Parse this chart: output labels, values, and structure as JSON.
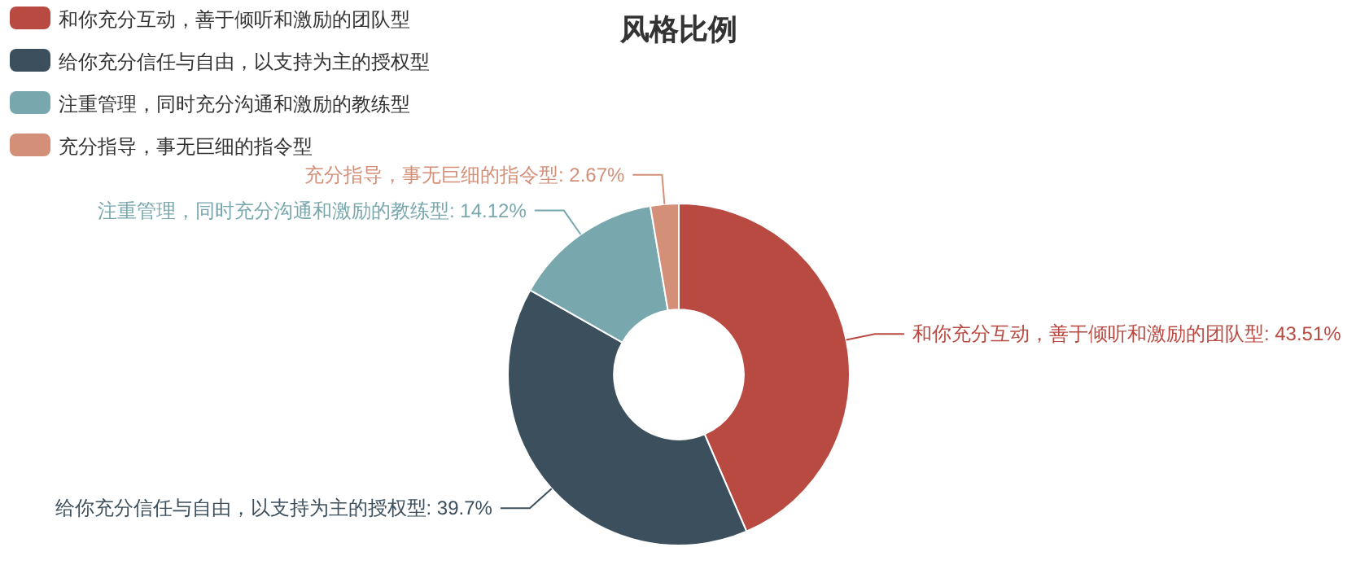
{
  "chart_data": {
    "type": "donut",
    "title": "风格比例",
    "categories": [
      "和你充分互动，善于倾听和激励的团队型",
      "给你充分信任与自由，以支持为主的授权型",
      "注重管理，同时充分沟通和激励的教练型",
      "充分指导，事无巨细的指令型"
    ],
    "values": [
      43.51,
      39.7,
      14.12,
      2.67
    ],
    "colors": [
      "#b84a42",
      "#3c4f5d",
      "#78a8ae",
      "#d38f77"
    ],
    "value_labels": [
      ": 43.51%",
      ": 39.7%",
      ": 14.12%",
      ": 2.67%"
    ],
    "legend": "top left"
  }
}
